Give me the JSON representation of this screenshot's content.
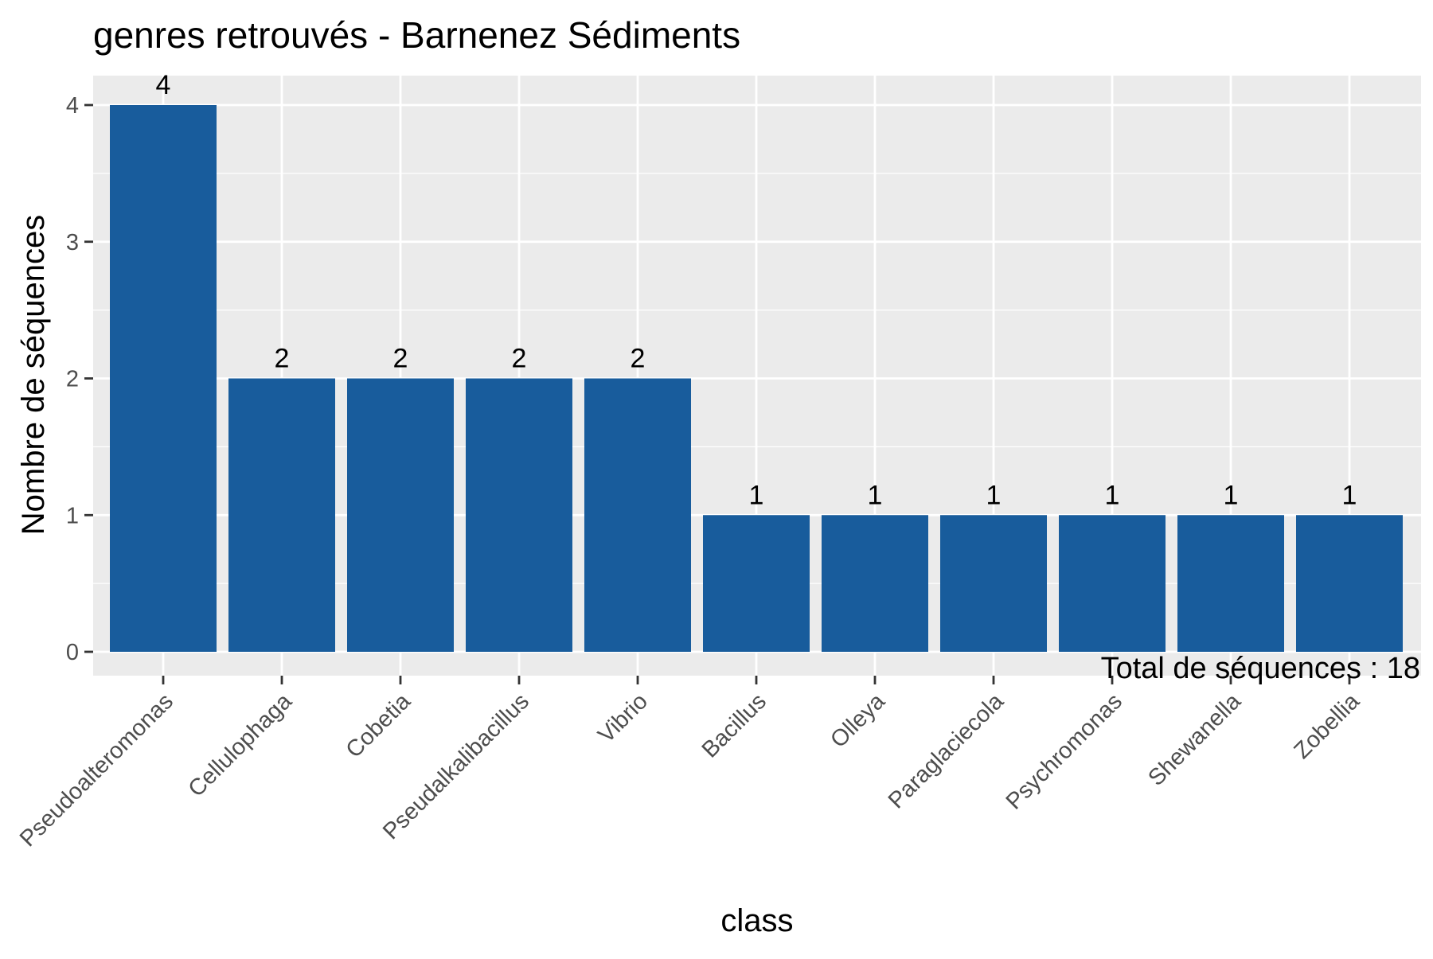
{
  "chart_data": {
    "type": "bar",
    "title": "genres retrouvés - Barnenez Sédiments",
    "xlabel": "class",
    "ylabel": "Nombre de séquences",
    "categories": [
      "Pseudoalteromonas",
      "Cellulophaga",
      "Cobetia",
      "Pseudalkalibacillus",
      "Vibrio",
      "Bacillus",
      "Olleya",
      "Paraglaciecola",
      "Psychromonas",
      "Shewanella",
      "Zobellia"
    ],
    "values": [
      4,
      2,
      2,
      2,
      2,
      1,
      1,
      1,
      1,
      1,
      1
    ],
    "data_labels": [
      "4",
      "2",
      "2",
      "2",
      "2",
      "1",
      "1",
      "1",
      "1",
      "1",
      "1"
    ],
    "ylim": [
      0,
      4
    ],
    "yticks": [
      0,
      1,
      2,
      3,
      4
    ],
    "ytick_labels": [
      "0",
      "1",
      "2",
      "3",
      "4"
    ],
    "grid": true,
    "legend": "none",
    "annotation": "Total de séquences : 18",
    "colors": {
      "bar": "#185c9c",
      "panel": "#ebebeb",
      "grid": "#ffffff"
    }
  }
}
